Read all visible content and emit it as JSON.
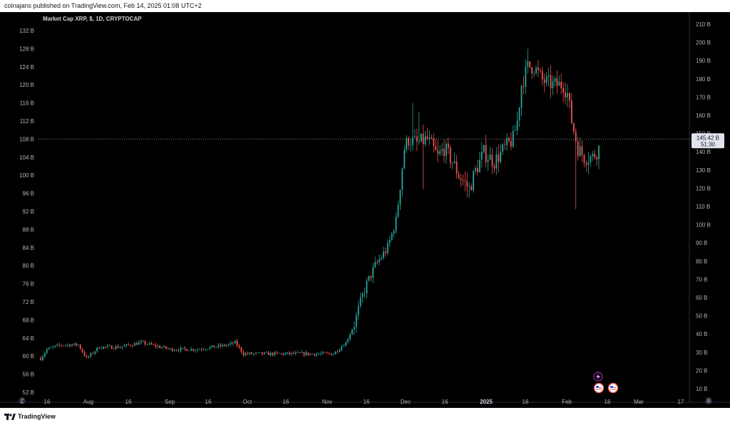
{
  "header": {
    "published": "coinajans published on TradingView.com, Feb 14, 2025 01:08 UTC+2"
  },
  "footer": {
    "brand": "TradingView"
  },
  "colors": {
    "up": "#26a69a",
    "down": "#ef5350",
    "background": "#000000",
    "price_line": "#b2b5be"
  },
  "current_price": {
    "label": "145.42 B",
    "countdown": "51:30",
    "value": 145.42
  },
  "event_icons": [
    "lightning-icon",
    "us-flag-icon",
    "us-flag-icon"
  ],
  "chart_data": {
    "type": "candlestick",
    "title": "Market Cap XRP, $, 1D, CRYPTOCAP",
    "left_axis": {
      "ticks": [
        "132 B",
        "128 B",
        "124 B",
        "120 B",
        "116 B",
        "112 B",
        "108 B",
        "104 B",
        "100 B",
        "96 B",
        "92 B",
        "88 B",
        "84 B",
        "80 B",
        "76 B",
        "72 B",
        "68 B",
        "64 B",
        "60 B",
        "56 B",
        "52 B"
      ],
      "ylim": [
        52,
        132
      ]
    },
    "right_axis": {
      "ticks": [
        "210 B",
        "200 B",
        "190 B",
        "180 B",
        "170 B",
        "160 B",
        "150 B",
        "140 B",
        "130 B",
        "120 B",
        "110 B",
        "100 B",
        "90 B",
        "80 B",
        "70 B",
        "60 B",
        "50 B",
        "40 B",
        "30 B",
        "20 B",
        "10 B"
      ],
      "ylim": [
        10,
        210
      ]
    },
    "x_ticks": [
      {
        "label": "16",
        "bold": false
      },
      {
        "label": "Aug",
        "bold": false
      },
      {
        "label": "16",
        "bold": false
      },
      {
        "label": "Sep",
        "bold": false
      },
      {
        "label": "16",
        "bold": false
      },
      {
        "label": "Oct",
        "bold": false
      },
      {
        "label": "16",
        "bold": false
      },
      {
        "label": "Nov",
        "bold": false
      },
      {
        "label": "16",
        "bold": false
      },
      {
        "label": "Dec",
        "bold": false
      },
      {
        "label": "16",
        "bold": false
      },
      {
        "label": "2025",
        "bold": true
      },
      {
        "label": "16",
        "bold": false
      },
      {
        "label": "Feb",
        "bold": false
      },
      {
        "label": "16",
        "bold": false
      },
      {
        "label": "Mar",
        "bold": false
      },
      {
        "label": "17",
        "bold": false
      }
    ],
    "axis_buttons": [
      "Z",
      "A"
    ],
    "price_unit": "B",
    "keypoints": [
      [
        0,
        59.5
      ],
      [
        3,
        61.5
      ],
      [
        10,
        62.5
      ],
      [
        18,
        62.5
      ],
      [
        22,
        59.5
      ],
      [
        28,
        62
      ],
      [
        38,
        62
      ],
      [
        48,
        63
      ],
      [
        62,
        61.5
      ],
      [
        75,
        61.5
      ],
      [
        90,
        62.5
      ],
      [
        93,
        63
      ],
      [
        97,
        60.5
      ],
      [
        130,
        60.5
      ],
      [
        140,
        60.5
      ],
      [
        146,
        63
      ],
      [
        150,
        67
      ],
      [
        153,
        72
      ],
      [
        156,
        76
      ],
      [
        160,
        80
      ],
      [
        166,
        84
      ],
      [
        170,
        90
      ],
      [
        172,
        98
      ],
      [
        174,
        106
      ],
      [
        176,
        108
      ],
      [
        180,
        107
      ],
      [
        185,
        108
      ],
      [
        190,
        104
      ],
      [
        193,
        106
      ],
      [
        197,
        103
      ],
      [
        200,
        100
      ],
      [
        205,
        97
      ],
      [
        208,
        101
      ],
      [
        212,
        105
      ],
      [
        217,
        103
      ],
      [
        222,
        106
      ],
      [
        226,
        108
      ],
      [
        228,
        112
      ],
      [
        230,
        120
      ],
      [
        233,
        124
      ],
      [
        236,
        124
      ],
      [
        240,
        121
      ],
      [
        245,
        120
      ],
      [
        250,
        120
      ],
      [
        252,
        118
      ],
      [
        254,
        112
      ],
      [
        257,
        106
      ],
      [
        260,
        104
      ],
      [
        264,
        104
      ],
      [
        267,
        106
      ]
    ],
    "notable_wicks": [
      {
        "day": 178,
        "high": 116
      },
      {
        "day": 181,
        "high": 114
      },
      {
        "day": 183,
        "low": 97
      },
      {
        "day": 205,
        "low": 95
      },
      {
        "day": 233,
        "high": 128
      },
      {
        "day": 256,
        "low": 92.5
      }
    ]
  }
}
